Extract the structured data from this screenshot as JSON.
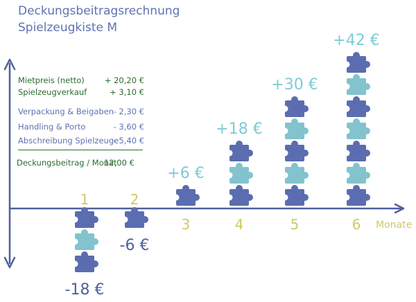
{
  "header": {
    "title": "Deckungsbeitragsrechnung",
    "subtitle": "Spielzeugkiste M"
  },
  "calculation": {
    "income": [
      {
        "label": "Mietpreis (netto)",
        "value": "+ 20,20 €"
      },
      {
        "label": "Spielzeugverkauf",
        "value": "+    3,10 €"
      }
    ],
    "costs": [
      {
        "label": "Verpackung & Beigaben",
        "value": "- 2,30 €"
      },
      {
        "label": "Handling & Porto",
        "value": "- 3,60 €"
      },
      {
        "label": "Abschreibung Spielzeuge",
        "value": "- 5,40 €"
      }
    ],
    "result": {
      "label": "Deckungsbeitrag / Monat",
      "value": "12,00 €"
    }
  },
  "colors": {
    "dark_piece": "#5b6db0",
    "light_piece": "#82c3cd",
    "axis": "#4f5f9c",
    "month_label": "#cfc866",
    "value_positive": "#7ecbd6",
    "value_negative": "#4f5f9c",
    "title": "#5f72b3",
    "green_text": "#2e6b2f"
  },
  "chart_data": {
    "type": "bar",
    "xlabel": "Monate",
    "ylabel": "",
    "categories": [
      "1",
      "2",
      "3",
      "4",
      "5",
      "6"
    ],
    "values": [
      -18,
      -6,
      6,
      18,
      30,
      42
    ],
    "value_labels": [
      "-18 €",
      "-6 €",
      "+6 €",
      "+18 €",
      "+30 €",
      "+42 €"
    ],
    "unit": "€",
    "piece_value": 6,
    "style": "stacked puzzle pieces",
    "grid": false,
    "legend": "none"
  }
}
